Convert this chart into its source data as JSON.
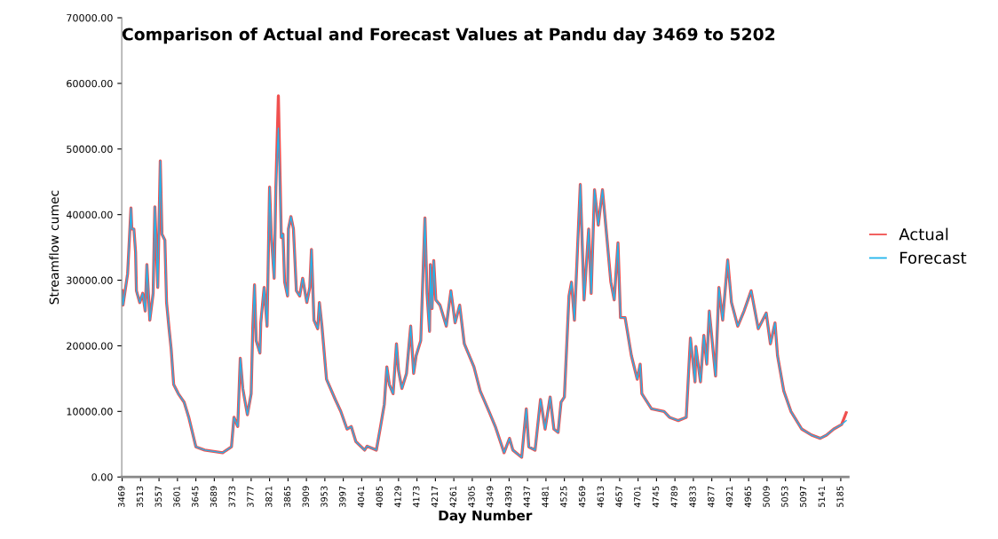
{
  "chart_data": {
    "type": "line",
    "title": "Comparison of Actual and Forecast Values at Pandu day 3469 to 5202",
    "xlabel": "Day Number",
    "ylabel": "Streamflow cumec",
    "x": [
      3469,
      3471,
      3482,
      3490,
      3492,
      3497,
      3501,
      3503,
      3511,
      3518,
      3524,
      3528,
      3535,
      3543,
      3547,
      3554,
      3560,
      3564,
      3571,
      3575,
      3581,
      3586,
      3592,
      3603,
      3617,
      3628,
      3645,
      3666,
      3709,
      3730,
      3736,
      3745,
      3751,
      3757,
      3768,
      3777,
      3781,
      3785,
      3789,
      3798,
      3800,
      3808,
      3815,
      3821,
      3825,
      3832,
      3836,
      3842,
      3849,
      3853,
      3857,
      3864,
      3866,
      3872,
      3878,
      3885,
      3893,
      3900,
      3910,
      3917,
      3921,
      3927,
      3936,
      3940,
      3946,
      3957,
      3978,
      3991,
      4006,
      4016,
      4027,
      4048,
      4054,
      4076,
      4086,
      4095,
      4101,
      4107,
      4116,
      4124,
      4129,
      4137,
      4148,
      4158,
      4165,
      4171,
      4182,
      4192,
      4197,
      4203,
      4205,
      4209,
      4213,
      4218,
      4228,
      4243,
      4254,
      4264,
      4275,
      4286,
      4309,
      4324,
      4345,
      4360,
      4381,
      4394,
      4402,
      4423,
      4434,
      4440,
      4455,
      4468,
      4479,
      4491,
      4500,
      4510,
      4517,
      4525,
      4536,
      4542,
      4549,
      4563,
      4572,
      4583,
      4589,
      4597,
      4606,
      4616,
      4627,
      4636,
      4644,
      4653,
      4659,
      4670,
      4685,
      4699,
      4706,
      4710,
      4733,
      4763,
      4776,
      4797,
      4816,
      4826,
      4837,
      4839,
      4850,
      4858,
      4865,
      4871,
      4886,
      4894,
      4903,
      4915,
      4924,
      4939,
      4954,
      4971,
      4988,
      5007,
      5017,
      5028,
      5034,
      5049,
      5066,
      5092,
      5115,
      5136,
      5151,
      5168,
      5187,
      5198
    ],
    "series": [
      {
        "name": "Actual",
        "color": "#f0504f",
        "values": [
          28400,
          26200,
          31000,
          41000,
          37800,
          37800,
          34300,
          28400,
          26600,
          28000,
          25300,
          32400,
          23900,
          28000,
          41200,
          28900,
          48200,
          37000,
          36100,
          26600,
          22600,
          19500,
          14100,
          12700,
          11400,
          9100,
          4600,
          4100,
          3700,
          4600,
          9100,
          7700,
          18100,
          13500,
          9500,
          12700,
          23000,
          29300,
          20800,
          18900,
          23500,
          28900,
          23000,
          44200,
          37000,
          30300,
          44200,
          58100,
          36500,
          37000,
          29700,
          27600,
          37800,
          39700,
          37800,
          28400,
          27600,
          30300,
          26600,
          28900,
          34700,
          23900,
          22600,
          26600,
          23000,
          14900,
          11800,
          10000,
          7300,
          7700,
          5400,
          4100,
          4700,
          4100,
          7700,
          11100,
          16800,
          14100,
          12700,
          20300,
          16200,
          13500,
          15800,
          23000,
          15800,
          18500,
          20800,
          39500,
          28000,
          22200,
          32400,
          25700,
          33000,
          27000,
          26200,
          23000,
          28400,
          23500,
          26200,
          20300,
          16800,
          13100,
          10000,
          7700,
          3700,
          5900,
          4100,
          3000,
          10400,
          4600,
          4100,
          11800,
          7300,
          12200,
          7300,
          6800,
          11400,
          12200,
          27600,
          29700,
          23900,
          44600,
          27000,
          37800,
          28000,
          43800,
          38400,
          43800,
          36100,
          29700,
          27000,
          35700,
          24300,
          24300,
          18500,
          14900,
          17200,
          12700,
          10400,
          10000,
          9100,
          8600,
          9100,
          21200,
          14500,
          19900,
          14500,
          21600,
          17200,
          25300,
          15400,
          28900,
          23900,
          33100,
          26600,
          23000,
          25300,
          28400,
          22600,
          25000,
          20300,
          23500,
          18500,
          13100,
          10000,
          7300,
          6400,
          5900,
          6400,
          7300,
          8000,
          9800
        ]
      },
      {
        "name": "Forecast",
        "color": "#22b4ec",
        "values": [
          28400,
          26200,
          31000,
          41000,
          37800,
          37800,
          34300,
          28400,
          26600,
          28000,
          25300,
          32400,
          23900,
          28000,
          41200,
          28900,
          48200,
          37000,
          36100,
          26600,
          22600,
          19500,
          14100,
          12700,
          11400,
          9100,
          4600,
          4100,
          3700,
          4600,
          9100,
          7700,
          18100,
          13500,
          9500,
          12700,
          23000,
          29300,
          20800,
          18900,
          23500,
          28900,
          23000,
          44200,
          37000,
          30300,
          44200,
          53200,
          36500,
          37000,
          29700,
          27600,
          37800,
          39700,
          37800,
          28400,
          27600,
          30300,
          26600,
          28900,
          34700,
          23900,
          22600,
          26600,
          23000,
          14900,
          11800,
          10000,
          7300,
          7700,
          5400,
          4100,
          4700,
          4100,
          7700,
          11100,
          16800,
          14100,
          12700,
          20300,
          16200,
          13500,
          15800,
          23000,
          15800,
          18500,
          20800,
          39500,
          28000,
          22200,
          32400,
          25700,
          33000,
          27000,
          26200,
          23000,
          28400,
          23500,
          26200,
          20300,
          16800,
          13100,
          10000,
          7700,
          3700,
          5900,
          4100,
          3000,
          10400,
          4600,
          4100,
          11800,
          7300,
          12200,
          7300,
          6800,
          11400,
          12200,
          27600,
          29700,
          23900,
          44600,
          27000,
          37800,
          28000,
          43800,
          38400,
          43800,
          36100,
          29700,
          27000,
          35700,
          24300,
          24300,
          18500,
          14900,
          17200,
          12700,
          10400,
          10000,
          9100,
          8600,
          9100,
          21200,
          14500,
          19900,
          14500,
          21600,
          17200,
          25300,
          15400,
          28900,
          23900,
          33100,
          26600,
          23000,
          25300,
          28400,
          22600,
          25000,
          20300,
          23500,
          18500,
          13100,
          10000,
          7300,
          6400,
          5900,
          6400,
          7300,
          8000,
          8600
        ]
      }
    ],
    "xlim": [
      3468,
      5203
    ],
    "xticks": [
      3469,
      3513,
      3557,
      3601,
      3645,
      3689,
      3733,
      3777,
      3821,
      3865,
      3909,
      3953,
      3997,
      4041,
      4085,
      4129,
      4173,
      4217,
      4261,
      4305,
      4349,
      4393,
      4437,
      4481,
      4525,
      4569,
      4613,
      4657,
      4701,
      4745,
      4789,
      4833,
      4877,
      4921,
      4965,
      5009,
      5053,
      5097,
      5141,
      5185
    ],
    "ylim": [
      0,
      70000
    ],
    "yticks": [
      {
        "value": 0,
        "label": "0.00"
      },
      {
        "value": 10000,
        "label": "10000.00"
      },
      {
        "value": 20000,
        "label": "20000.00"
      },
      {
        "value": 30000,
        "label": "30000.00"
      },
      {
        "value": 40000,
        "label": "40000.00"
      },
      {
        "value": 50000,
        "label": "50000.00"
      },
      {
        "value": 60000,
        "label": "60000.00"
      },
      {
        "value": 70000,
        "label": "70000.00"
      }
    ],
    "grid": false,
    "legend": "right",
    "marker": "none",
    "line_style": "solid"
  }
}
